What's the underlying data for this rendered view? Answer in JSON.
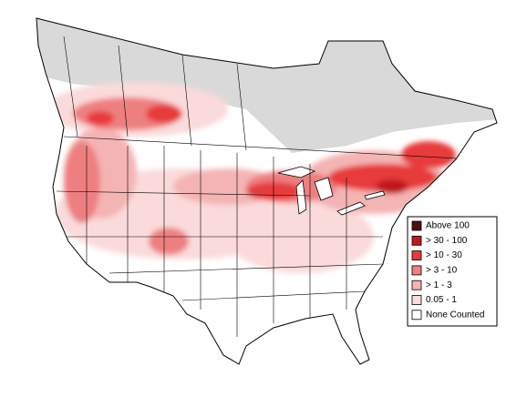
{
  "legend": {
    "items": [
      {
        "label": "Above 100",
        "color": "#4d0f0f"
      },
      {
        "label": "> 30 - 100",
        "color": "#c0181c"
      },
      {
        "label": "> 10 - 30",
        "color": "#e83a3a"
      },
      {
        "label": "> 3 - 10",
        "color": "#ee7f80"
      },
      {
        "label": "> 1 - 3",
        "color": "#f4b4b4"
      },
      {
        "label": "0.05 - 1",
        "color": "#fadada"
      },
      {
        "label": "None Counted",
        "color": "#ffffff"
      }
    ]
  }
}
